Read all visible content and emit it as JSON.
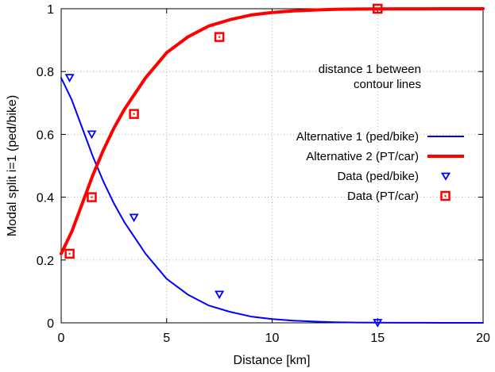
{
  "chart_data": {
    "type": "line",
    "title": "",
    "xlabel": "Distance [km]",
    "ylabel": "Modal split i=1 (ped/bike)",
    "xlim": [
      0,
      20
    ],
    "ylim": [
      0,
      1
    ],
    "x_ticks": [
      0,
      5,
      10,
      15,
      20
    ],
    "y_ticks": [
      0,
      0.2,
      0.4,
      0.6,
      0.8,
      1
    ],
    "x_tick_labels": [
      "0",
      "5",
      "10",
      "15",
      "20"
    ],
    "y_tick_labels": [
      "0",
      "0.2",
      "0.4",
      "0.6",
      "0.8",
      "1"
    ],
    "grid": true,
    "legend_position": "right",
    "annotation": [
      "distance 1 between",
      "contour lines"
    ],
    "series": [
      {
        "name": "Alternative 1 (ped/bike)",
        "kind": "line",
        "color": "#0000ff",
        "x": [
          0,
          0.5,
          1,
          1.5,
          2,
          2.5,
          3,
          3.5,
          4,
          4.5,
          5,
          6,
          7,
          8,
          9,
          10,
          11,
          12,
          13,
          14,
          15,
          16,
          17,
          18,
          19,
          20
        ],
        "y": [
          0.78,
          0.71,
          0.62,
          0.53,
          0.45,
          0.38,
          0.32,
          0.27,
          0.22,
          0.18,
          0.14,
          0.09,
          0.055,
          0.035,
          0.02,
          0.012,
          0.007,
          0.004,
          0.002,
          0.001,
          0.0005,
          0.0003,
          0.0002,
          0.0001,
          0.0001,
          0.0
        ]
      },
      {
        "name": "Alternative 2 (PT/car)",
        "kind": "line",
        "color": "#ff0000",
        "x": [
          0,
          0.5,
          1,
          1.5,
          2,
          2.5,
          3,
          3.5,
          4,
          4.5,
          5,
          6,
          7,
          8,
          9,
          10,
          11,
          12,
          13,
          14,
          15,
          16,
          17,
          18,
          19,
          20
        ],
        "y": [
          0.22,
          0.29,
          0.38,
          0.47,
          0.55,
          0.62,
          0.68,
          0.73,
          0.78,
          0.82,
          0.86,
          0.91,
          0.945,
          0.965,
          0.98,
          0.988,
          0.993,
          0.996,
          0.998,
          0.999,
          0.9995,
          0.9997,
          0.9998,
          0.9999,
          0.9999,
          1.0
        ]
      },
      {
        "name": "Data (ped/bike)",
        "kind": "points",
        "marker": "triangle-down",
        "color": "#0000ff",
        "x": [
          0.4,
          1.45,
          3.45,
          7.5,
          15
        ],
        "y": [
          0.78,
          0.6,
          0.335,
          0.09,
          0.0
        ]
      },
      {
        "name": "Data (PT/car)",
        "kind": "points",
        "marker": "square",
        "color": "#ff0000",
        "x": [
          0.4,
          1.45,
          3.45,
          7.5,
          15
        ],
        "y": [
          0.22,
          0.4,
          0.665,
          0.91,
          1.0
        ]
      }
    ]
  }
}
